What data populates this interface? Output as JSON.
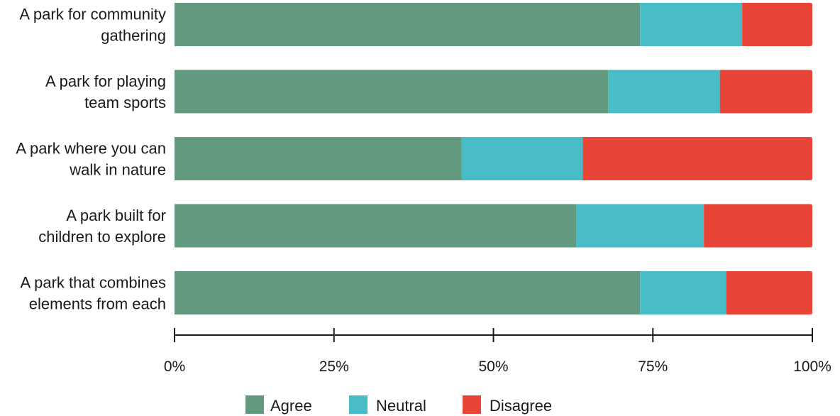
{
  "chart_data": {
    "type": "bar",
    "orientation": "horizontal",
    "stacked": true,
    "normalized": true,
    "categories": [
      [
        "A park for community",
        "gathering"
      ],
      [
        "A park for playing",
        "team sports"
      ],
      [
        "A park where you can",
        "walk in nature"
      ],
      [
        "A park built for",
        "children to explore"
      ],
      [
        "A park that combines",
        "elements from each"
      ]
    ],
    "series": [
      {
        "name": "Agree",
        "color": "#62997f",
        "values": [
          73,
          68,
          45,
          63,
          73
        ]
      },
      {
        "name": "Neutral",
        "color": "#48bdc8",
        "values": [
          16,
          17.5,
          19,
          20,
          13.5
        ]
      },
      {
        "name": "Disagree",
        "color": "#e84437",
        "values": [
          11,
          14.5,
          36,
          17,
          13.5
        ]
      }
    ],
    "xlim": [
      0,
      100
    ],
    "xticks": [
      "0%",
      "25%",
      "50%",
      "75%",
      "100%"
    ],
    "grid": false,
    "legend": "bottom-center",
    "title": "",
    "xlabel": "",
    "ylabel": ""
  }
}
